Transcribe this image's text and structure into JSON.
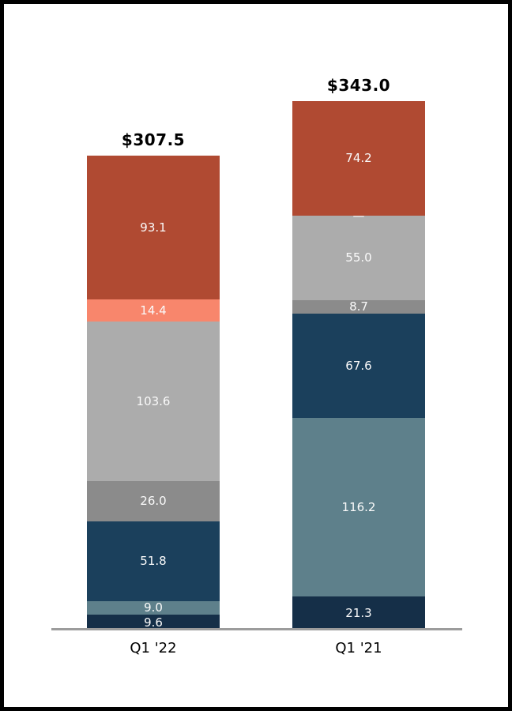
{
  "page": {
    "background_color": "#ffffff",
    "frame_border_color": "#000000"
  },
  "chart_data": {
    "type": "bar",
    "variant": "stacked",
    "title": "",
    "legend": null,
    "gridlines": false,
    "y_axis_visible": false,
    "baseline_visible": true,
    "baseline_color": "#9c9c9c",
    "segment_label_color": "#fafafa",
    "total_label_color": "#000000",
    "category_label_color": "#000000",
    "categories": [
      "Q1 '22",
      "Q1 '21"
    ],
    "totals": [
      307.5,
      343.0
    ],
    "bars": [
      {
        "category": "Q1 '22",
        "total_label": "$307.5",
        "total": 307.5,
        "segments_top_to_bottom": [
          {
            "label": "93.1",
            "value": 93.1,
            "color": "#B04A32"
          },
          {
            "label": "14.4",
            "value": 14.4,
            "color": "#F8866C"
          },
          {
            "label": "103.6",
            "value": 103.6,
            "color": "#ACACAC"
          },
          {
            "label": "26.0",
            "value": 26.0,
            "color": "#8B8B8B"
          },
          {
            "label": "51.8",
            "value": 51.8,
            "color": "#1B405C"
          },
          {
            "label": "9.0",
            "value": 9.0,
            "color": "#5E808B"
          },
          {
            "label": "9.6",
            "value": 9.6,
            "color": "#152F48"
          }
        ]
      },
      {
        "category": "Q1 '21",
        "total_label": "$343.0",
        "total": 343.0,
        "segments_top_to_bottom": [
          {
            "label": "74.2",
            "value": 74.2,
            "color": "#B04A32"
          },
          {
            "label": "—",
            "value": 0,
            "color": "#F8866C"
          },
          {
            "label": "55.0",
            "value": 55.0,
            "color": "#ACACAC"
          },
          {
            "label": "8.7",
            "value": 8.7,
            "color": "#8B8B8B"
          },
          {
            "label": "67.6",
            "value": 67.6,
            "color": "#1B405C"
          },
          {
            "label": "116.2",
            "value": 116.2,
            "color": "#5E808B"
          },
          {
            "label": "21.3",
            "value": 21.3,
            "color": "#152F48"
          }
        ]
      }
    ]
  }
}
